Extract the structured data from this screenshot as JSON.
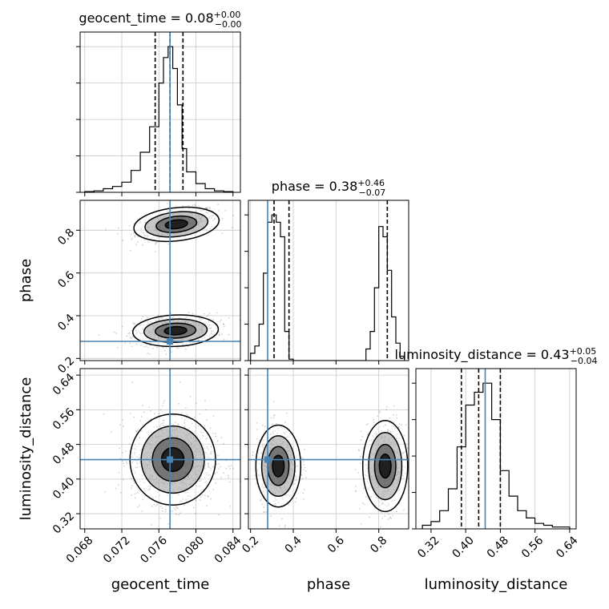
{
  "chart_data": {
    "type": "corner",
    "parameters": [
      "geocent_time",
      "phase",
      "luminosity_distance"
    ],
    "truths": {
      "geocent_time": 0.0772,
      "phase": 0.28,
      "luminosity_distance": 0.445
    },
    "truth_color": "#4682b4",
    "summaries": [
      {
        "param": "geocent_time",
        "median": 0.0772,
        "q16": 0.0756,
        "q84": 0.0786,
        "title": "geocent_time = 0.08",
        "sup": "+0.00",
        "sub": "−0.00"
      },
      {
        "param": "phase",
        "median": 0.38,
        "q16": 0.31,
        "q84": 0.84,
        "title": "phase = 0.38",
        "sup": "+0.46",
        "sub": "−0.07"
      },
      {
        "param": "luminosity_distance",
        "median": 0.43,
        "q16": 0.39,
        "q84": 0.48,
        "title": "luminosity_distance = 0.43",
        "sup": "+0.05",
        "sub": "−0.04"
      }
    ],
    "histograms": {
      "geocent_time": {
        "edges": [
          0.068,
          0.069,
          0.07,
          0.071,
          0.072,
          0.073,
          0.074,
          0.075,
          0.076,
          0.0765,
          0.077,
          0.0775,
          0.078,
          0.0785,
          0.079,
          0.08,
          0.081,
          0.082,
          0.083,
          0.084
        ],
        "counts": [
          1,
          2,
          5,
          8,
          14,
          30,
          55,
          90,
          150,
          185,
          200,
          170,
          120,
          60,
          28,
          12,
          5,
          2,
          1
        ]
      },
      "phase": {
        "edges": [
          0.2,
          0.22,
          0.24,
          0.26,
          0.28,
          0.3,
          0.32,
          0.34,
          0.36,
          0.38,
          0.4,
          0.42,
          0.44,
          0.46,
          0.48,
          0.5,
          0.52,
          0.54,
          0.56,
          0.58,
          0.6,
          0.62,
          0.64,
          0.66,
          0.68,
          0.7,
          0.72,
          0.74,
          0.76,
          0.78,
          0.8,
          0.82,
          0.84,
          0.86,
          0.88,
          0.9,
          0.92
        ],
        "counts": [
          5,
          10,
          25,
          60,
          95,
          100,
          95,
          85,
          20,
          1,
          0,
          0,
          0,
          0,
          0,
          0,
          0,
          0,
          0,
          0,
          0,
          0,
          0,
          0,
          0,
          0,
          0,
          8,
          20,
          50,
          92,
          85,
          62,
          30,
          12,
          3
        ]
      },
      "luminosity_distance": {
        "edges": [
          0.3,
          0.32,
          0.34,
          0.36,
          0.38,
          0.4,
          0.42,
          0.44,
          0.46,
          0.48,
          0.5,
          0.52,
          0.54,
          0.56,
          0.58,
          0.6,
          0.62,
          0.64
        ],
        "counts": [
          2,
          4,
          10,
          22,
          45,
          68,
          75,
          80,
          60,
          32,
          18,
          10,
          6,
          3,
          2,
          1,
          1
        ]
      }
    },
    "blobs_2d": {
      "phase_vs_geocent_time": [
        {
          "cx": 0.0779,
          "cy": 0.828,
          "sx": 0.0022,
          "sy": 0.037,
          "tilt": 0.55,
          "n": 500
        },
        {
          "cx": 0.0778,
          "cy": 0.33,
          "sx": 0.0022,
          "sy": 0.035,
          "tilt": 0.2,
          "n": 650
        }
      ],
      "luminosity_distance_vs_geocent_time": [
        {
          "cx": 0.0775,
          "cy": 0.445,
          "sx": 0.0022,
          "sy": 0.05,
          "tilt": 0,
          "n": 1200
        }
      ],
      "luminosity_distance_vs_phase": [
        {
          "cx": 0.33,
          "cy": 0.43,
          "sx": 0.05,
          "sy": 0.045,
          "tilt": 0,
          "n": 600
        },
        {
          "cx": 0.83,
          "cy": 0.43,
          "sx": 0.05,
          "sy": 0.05,
          "tilt": 0,
          "n": 600
        }
      ]
    },
    "axes": {
      "geocent_time": {
        "range": [
          0.0675,
          0.0848
        ],
        "ticks": [
          0.068,
          0.072,
          0.076,
          0.08,
          0.084
        ],
        "tick_labels": [
          "0.068",
          "0.072",
          "0.076",
          "0.080",
          "0.084"
        ]
      },
      "phase": {
        "range": [
          0.19,
          0.94
        ],
        "ticks": [
          0.2,
          0.4,
          0.6,
          0.8
        ],
        "tick_labels": [
          "0.2",
          "0.4",
          "0.6",
          "0.8"
        ]
      },
      "luminosity_distance": {
        "range": [
          0.285,
          0.655
        ],
        "ticks": [
          0.32,
          0.4,
          0.48,
          0.56,
          0.64
        ],
        "tick_labels": [
          "0.32",
          "0.40",
          "0.48",
          "0.56",
          "0.64"
        ]
      }
    },
    "axis_labels": {
      "geocent_time": "geocent_time",
      "phase": "phase",
      "luminosity_distance": "luminosity_distance"
    },
    "grid": true,
    "legend": "none"
  }
}
